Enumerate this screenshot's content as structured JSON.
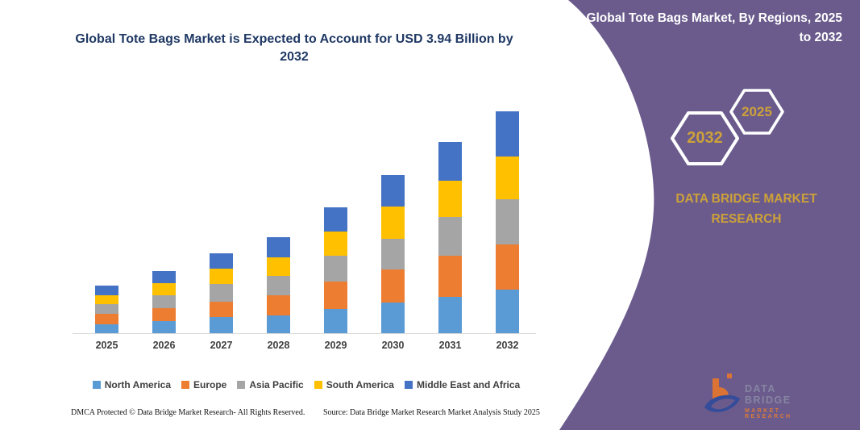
{
  "title_annotation": "Global Tote Bags Market is Expected to Account for USD 3.94 Billion by 2032",
  "sidebar": {
    "heading": "Global Tote Bags Market, By Regions, 2025 to 2032",
    "hexagons": [
      {
        "label": "2032"
      },
      {
        "label": "2025"
      }
    ],
    "brand": "DATA BRIDGE MARKET RESEARCH",
    "logo": {
      "line1": "DATA BRIDGE",
      "line2": "MARKET RESEARCH"
    }
  },
  "footer": {
    "dmca": "DMCA Protected © Data Bridge Market Research-  All Rights Reserved.",
    "source": "Source: Data Bridge Market Research  Market Analysis Study 2025"
  },
  "colors": {
    "purple": "#6A5B8C",
    "gold": "#CDA13A",
    "navy": "#1F3864",
    "axis_line": "#D9D9D9",
    "label_gray": "#3F3F3F"
  },
  "chart_data": {
    "type": "bar",
    "stacked": true,
    "title": "Global Tote Bags Market is Expected to Account for USD 3.94 Billion by 2032",
    "unit": "USD Billion",
    "categories": [
      "2025",
      "2026",
      "2027",
      "2028",
      "2029",
      "2030",
      "2031",
      "2032"
    ],
    "series": [
      {
        "name": "North America",
        "color": "#5B9BD5",
        "values": [
          0.16,
          0.22,
          0.29,
          0.32,
          0.43,
          0.54,
          0.65,
          0.77
        ]
      },
      {
        "name": "Europe",
        "color": "#ED7D31",
        "values": [
          0.18,
          0.23,
          0.27,
          0.36,
          0.49,
          0.59,
          0.73,
          0.81
        ]
      },
      {
        "name": "Asia Pacific",
        "color": "#A5A5A5",
        "values": [
          0.17,
          0.22,
          0.31,
          0.33,
          0.45,
          0.55,
          0.68,
          0.79
        ]
      },
      {
        "name": "South America",
        "color": "#FFC000",
        "values": [
          0.16,
          0.22,
          0.28,
          0.34,
          0.44,
          0.57,
          0.64,
          0.76
        ]
      },
      {
        "name": "Middle East and Africa",
        "color": "#4472C4",
        "values": [
          0.17,
          0.22,
          0.27,
          0.35,
          0.43,
          0.56,
          0.69,
          0.81
        ]
      }
    ],
    "totals": [
      0.84,
      1.11,
      1.42,
      1.7,
      2.24,
      2.81,
      3.39,
      3.94
    ],
    "ylim": [
      0,
      4.05
    ],
    "y_axis_visible": false,
    "gridlines": false,
    "legend_position": "bottom"
  }
}
